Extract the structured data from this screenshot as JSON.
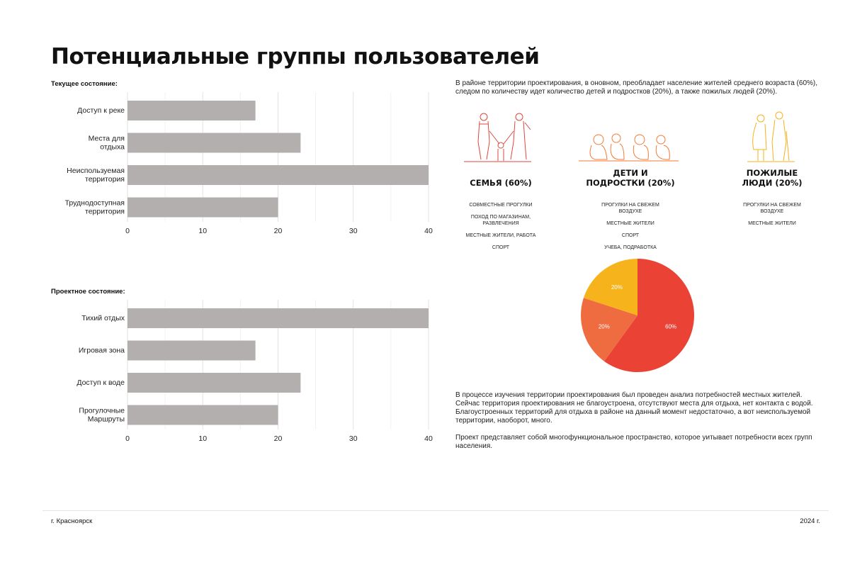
{
  "title": "Потенциальные группы пользователей",
  "intro": "В районе территории проектирования, в оновном, преобладает население жителей среднего возраста (60%), следом по количеству идет количество детей и подростков (20%), а также пожилых людей (20%).",
  "groups": [
    {
      "title": "СЕМЬЯ (60%)",
      "items": [
        "Совместные прогулки",
        "Поход по магазинам, развлечения",
        "Местные жители, работа",
        "Спорт"
      ],
      "color": "#e0463c"
    },
    {
      "title": "ДЕТИ И ПОДРОСТКИ (20%)",
      "items": [
        "Прогулки на свежем воздухе",
        "Местные жители",
        "Спорт",
        "Учеба, подработка"
      ],
      "color": "#f07a35"
    },
    {
      "title": "ПОЖИЛЫЕ ЛЮДИ (20%)",
      "items": [
        "Прогулки на свежем воздухе",
        "Местные жители"
      ],
      "color": "#f5b21c"
    }
  ],
  "conclusion": [
    "В процессе изучения территории проектирования был проведен анализ потребностей местных жителей.",
    "Сейчас территория проектирования не благоустроена, отсутствуют места для отдыха, нет контакта с водой. Благоустроенных территорий для отдыха в районе на данный момент недостаточно, а вот неиспользуемой территории, наоборот, много.",
    "Проект представляет собой многофункциональное пространство, которое уитывает потребности всех групп населения."
  ],
  "footer": {
    "city": "г. Красноярск",
    "year": "2024 г."
  },
  "chart_data": [
    {
      "type": "bar",
      "orientation": "horizontal",
      "title": "Текущее состояние:",
      "categories": [
        "Доступ к реке",
        "Места для отдыха",
        "Неиспользуемая территория",
        "Труднодоступная территория"
      ],
      "values": [
        17,
        23,
        40,
        20
      ],
      "xlim": [
        0,
        40
      ],
      "xticks": [
        0,
        10,
        20,
        30,
        40
      ],
      "grid": true,
      "color": "#b3afae"
    },
    {
      "type": "bar",
      "orientation": "horizontal",
      "title": "Проектное состояние:",
      "categories": [
        "Тихий отдых",
        "Игровая зона",
        "Доступ к воде",
        "Прогулочные Маршруты"
      ],
      "values": [
        40,
        17,
        23,
        20
      ],
      "xlim": [
        0,
        40
      ],
      "xticks": [
        0,
        10,
        20,
        30,
        40
      ],
      "grid": true,
      "color": "#b3afae"
    },
    {
      "type": "pie",
      "labels": [
        "60%",
        "20%",
        "20%"
      ],
      "values": [
        60,
        20,
        20
      ],
      "colors": [
        "#ea4335",
        "#ef6c40",
        "#f6b31b"
      ]
    }
  ]
}
